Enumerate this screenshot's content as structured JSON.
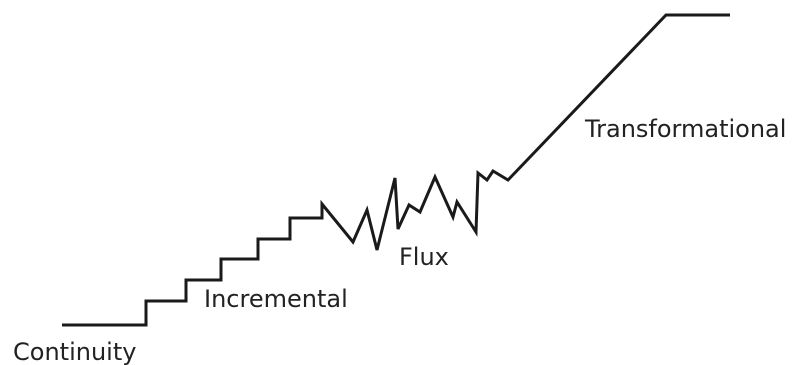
{
  "diagram": {
    "stages": {
      "continuity": "Continuity",
      "incremental": "Incremental",
      "flux": "Flux",
      "transformational": "Transformational"
    },
    "line_color": "#1a1a1a",
    "text_color": "#222222"
  }
}
